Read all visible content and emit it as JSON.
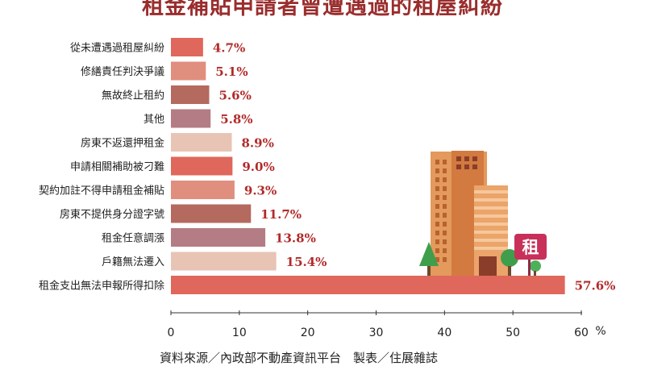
{
  "chart_data": {
    "type": "bar",
    "orientation": "horizontal",
    "title": "租金補貼申請者曾遭遇過的租屋糾紛",
    "categories": [
      "從未遭遇過租屋糾紛",
      "修繕責任判決爭議",
      "無故終止租約",
      "其他",
      "房東不返還押租金",
      "申請相關補助被刁難",
      "契約加註不得申請租金補貼",
      "房東不提供身分證字號",
      "租金任意調漲",
      "戶籍無法遷入",
      "租金支出無法申報所得扣除"
    ],
    "values": [
      4.7,
      5.1,
      5.6,
      5.8,
      8.9,
      9.0,
      9.3,
      11.7,
      13.8,
      15.4,
      57.6
    ],
    "value_labels": [
      "4.7%",
      "5.1%",
      "5.6%",
      "5.8%",
      "8.9%",
      "9.0%",
      "9.3%",
      "11.7%",
      "13.8%",
      "15.4%",
      "57.6%"
    ],
    "bar_colors": [
      "#e0675b",
      "#e08e7e",
      "#b46a5e",
      "#b47c84",
      "#e8c4b4",
      "#e0675b",
      "#e08e7e",
      "#b46a5e",
      "#b47c84",
      "#e8c4b4",
      "#e0675b"
    ],
    "xlim": [
      0,
      60
    ],
    "xticks": [
      0,
      10,
      20,
      30,
      40,
      50,
      60
    ],
    "xunit": "%",
    "grid": false,
    "label_color": "#b22a2a"
  },
  "source_text": "資料來源／內政部不動產資訊平台　製表／住展雜誌",
  "illustration": {
    "sign_text": "租",
    "sign_color": "#c8305a",
    "building_color": "#e08e52",
    "tree_color": "#3e9e4c"
  }
}
